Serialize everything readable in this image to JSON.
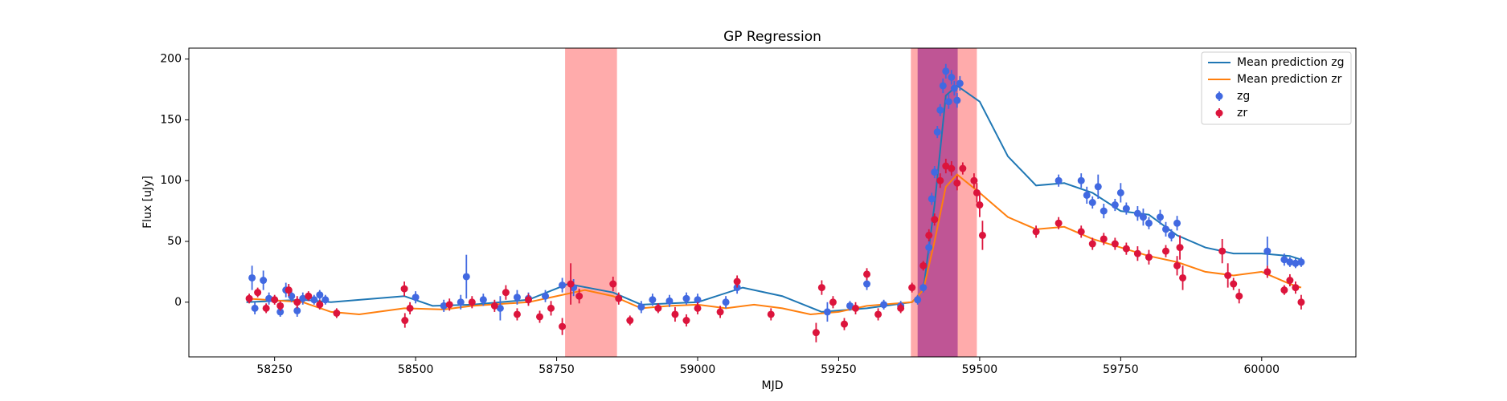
{
  "chart_data": {
    "type": "line",
    "title": "GP Regression",
    "x_label": "MJD",
    "y_label": "Flux [uJy]",
    "xlim": [
      58098,
      60167
    ],
    "ylim": [
      -45,
      209
    ],
    "xticks": [
      58250,
      58500,
      58750,
      59000,
      59250,
      59500,
      59750,
      60000
    ],
    "yticks": [
      0,
      50,
      100,
      150,
      200
    ],
    "grid": false,
    "legend": "upper right",
    "spans": [
      {
        "x": [
          58765,
          58857
        ],
        "color": "#ff0000",
        "opacity": 0.33
      },
      {
        "x": [
          59378,
          59495
        ],
        "color": "#ff0000",
        "opacity": 0.33
      },
      {
        "x": [
          59390,
          59461
        ],
        "color": "#800080",
        "opacity": 0.5
      }
    ],
    "series": [
      {
        "name": "Mean prediction zg",
        "style": "line",
        "color": "#1f77b4",
        "x": [
          58200,
          58300,
          58350,
          58480,
          58530,
          58600,
          58700,
          58770,
          58850,
          58900,
          59000,
          59080,
          59150,
          59220,
          59300,
          59380,
          59400,
          59420,
          59440,
          59460,
          59500,
          59550,
          59600,
          59650,
          59700,
          59750,
          59800,
          59850,
          59900,
          59950,
          60000,
          60050,
          60070
        ],
        "values": [
          0,
          2,
          0,
          5,
          -3,
          -2,
          2,
          15,
          8,
          -2,
          0,
          12,
          5,
          -8,
          -5,
          0,
          10,
          80,
          170,
          178,
          165,
          120,
          96,
          98,
          90,
          75,
          72,
          55,
          45,
          40,
          40,
          38,
          35
        ]
      },
      {
        "name": "Mean prediction zr",
        "style": "line",
        "color": "#ff7f0e",
        "x": [
          58200,
          58300,
          58350,
          58400,
          58480,
          58550,
          58600,
          58700,
          58750,
          58800,
          58850,
          58900,
          58950,
          59000,
          59050,
          59100,
          59150,
          59200,
          59250,
          59300,
          59380,
          59400,
          59420,
          59440,
          59460,
          59500,
          59550,
          59600,
          59650,
          59700,
          59750,
          59800,
          59850,
          59900,
          59950,
          60000,
          60050,
          60070
        ],
        "values": [
          3,
          0,
          -8,
          -10,
          -5,
          -6,
          -3,
          0,
          5,
          10,
          5,
          -5,
          -3,
          -2,
          -5,
          -2,
          -5,
          -10,
          -8,
          -3,
          0,
          10,
          50,
          95,
          105,
          90,
          70,
          60,
          62,
          52,
          45,
          38,
          33,
          25,
          22,
          25,
          15,
          12
        ]
      },
      {
        "name": "zg",
        "style": "errorbar",
        "color": "#4169e1",
        "x": [
          58210,
          58215,
          58230,
          58240,
          58260,
          58270,
          58280,
          58290,
          58300,
          58320,
          58330,
          58340,
          58500,
          58550,
          58580,
          58590,
          58620,
          58650,
          58680,
          58700,
          58730,
          58760,
          58780,
          58900,
          58920,
          58950,
          58980,
          59000,
          59050,
          59070,
          59230,
          59270,
          59300,
          59330,
          59360,
          59390,
          59400,
          59410,
          59415,
          59420,
          59425,
          59430,
          59435,
          59440,
          59445,
          59450,
          59455,
          59460,
          59465,
          59640,
          59680,
          59690,
          59700,
          59710,
          59720,
          59740,
          59750,
          59760,
          59780,
          59790,
          59800,
          59820,
          59830,
          59840,
          59850,
          60010,
          60040,
          60050,
          60060,
          60070
        ],
        "values": [
          20,
          -5,
          18,
          3,
          -8,
          10,
          5,
          -7,
          3,
          2,
          6,
          2,
          4,
          -3,
          0,
          21,
          2,
          -5,
          4,
          3,
          5,
          14,
          12,
          -4,
          2,
          1,
          3,
          2,
          0,
          12,
          -8,
          -3,
          15,
          -2,
          -3,
          2,
          12,
          45,
          85,
          107,
          140,
          158,
          178,
          190,
          165,
          185,
          176,
          166,
          180,
          100,
          100,
          88,
          82,
          95,
          75,
          80,
          90,
          77,
          73,
          70,
          65,
          70,
          60,
          55,
          65,
          42,
          35,
          33,
          32,
          33
        ],
        "errors": [
          10,
          5,
          8,
          5,
          4,
          6,
          5,
          5,
          5,
          4,
          4,
          4,
          5,
          5,
          6,
          18,
          5,
          10,
          6,
          5,
          5,
          6,
          7,
          5,
          5,
          5,
          5,
          5,
          5,
          5,
          8,
          4,
          5,
          4,
          4,
          4,
          4,
          5,
          5,
          5,
          5,
          5,
          6,
          6,
          6,
          6,
          6,
          6,
          6,
          5,
          6,
          7,
          5,
          10,
          6,
          5,
          8,
          5,
          6,
          7,
          5,
          6,
          6,
          5,
          6,
          12,
          5,
          4,
          4,
          4
        ]
      },
      {
        "name": "zr",
        "style": "errorbar",
        "color": "#dc143c",
        "x": [
          58205,
          58220,
          58235,
          58250,
          58260,
          58275,
          58290,
          58310,
          58330,
          58360,
          58480,
          58481,
          58490,
          58560,
          58600,
          58640,
          58660,
          58680,
          58700,
          58720,
          58740,
          58760,
          58775,
          58790,
          58850,
          58860,
          58880,
          58930,
          58960,
          58980,
          59000,
          59040,
          59070,
          59130,
          59210,
          59220,
          59240,
          59260,
          59280,
          59300,
          59320,
          59360,
          59380,
          59400,
          59410,
          59420,
          59430,
          59440,
          59450,
          59460,
          59470,
          59490,
          59495,
          59500,
          59505,
          59600,
          59640,
          59680,
          59700,
          59720,
          59740,
          59760,
          59780,
          59800,
          59830,
          59850,
          59855,
          59860,
          59930,
          59940,
          59950,
          59960,
          60010,
          60040,
          60050,
          60060,
          60070
        ],
        "values": [
          3,
          8,
          -5,
          2,
          -3,
          10,
          0,
          5,
          -2,
          -9,
          11,
          -15,
          -5,
          -2,
          0,
          -3,
          8,
          -10,
          2,
          -12,
          -5,
          -20,
          15,
          5,
          15,
          3,
          -15,
          -5,
          -10,
          -15,
          -5,
          -8,
          17,
          -10,
          -25,
          12,
          0,
          -18,
          -5,
          23,
          -10,
          -5,
          12,
          30,
          55,
          68,
          100,
          112,
          110,
          98,
          110,
          100,
          90,
          80,
          55,
          58,
          65,
          58,
          48,
          52,
          48,
          44,
          40,
          37,
          42,
          30,
          45,
          20,
          42,
          22,
          15,
          5,
          25,
          10,
          18,
          12,
          0
        ],
        "errors": [
          4,
          4,
          4,
          4,
          4,
          5,
          5,
          4,
          4,
          4,
          6,
          6,
          5,
          5,
          5,
          5,
          6,
          5,
          5,
          5,
          6,
          7,
          17,
          6,
          6,
          5,
          4,
          4,
          6,
          5,
          5,
          5,
          5,
          5,
          8,
          6,
          5,
          5,
          5,
          5,
          5,
          4,
          4,
          4,
          5,
          5,
          6,
          6,
          6,
          6,
          5,
          6,
          8,
          10,
          12,
          5,
          5,
          5,
          5,
          5,
          5,
          5,
          6,
          6,
          5,
          8,
          10,
          10,
          10,
          10,
          5,
          6,
          5,
          4,
          5,
          5,
          6
        ]
      }
    ]
  }
}
